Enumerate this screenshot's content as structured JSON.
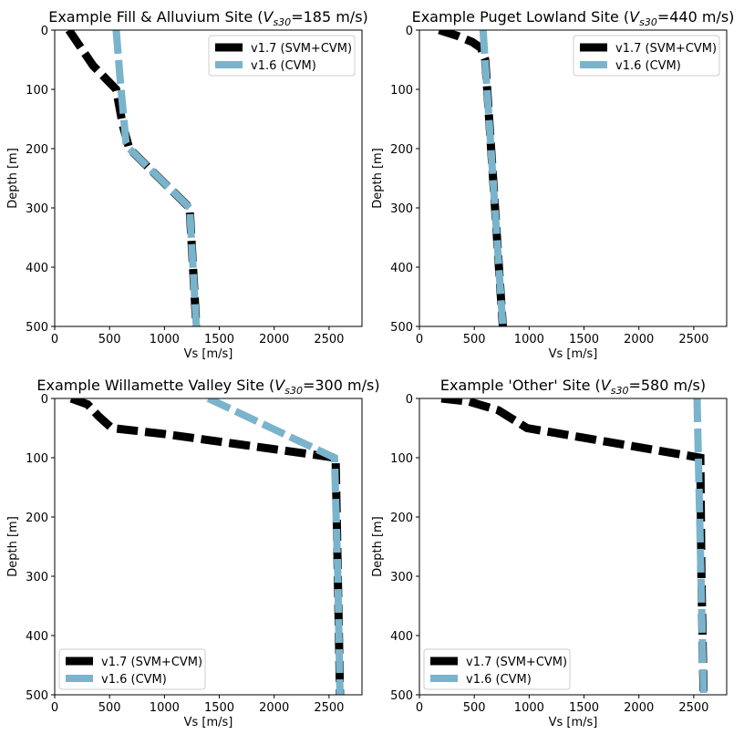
{
  "colors": {
    "v17": "#000000",
    "v16": "#7ab3cc",
    "axis": "#000000",
    "legend_border": "#cccccc",
    "background": "#ffffff"
  },
  "chart_data": [
    {
      "type": "line",
      "title_prefix": "Example Fill & Alluvium Site (",
      "title_var": "V",
      "title_sub": "s30",
      "title_suffix": "=185 m/s)",
      "xlabel": "Vs [m/s]",
      "ylabel": "Depth [m]",
      "xlim": [
        0,
        2800
      ],
      "ylim": [
        500,
        0
      ],
      "xticks": [
        0,
        500,
        1000,
        1500,
        2000,
        2500
      ],
      "yticks": [
        0,
        100,
        200,
        300,
        400,
        500
      ],
      "legend_loc": "upper-right",
      "series": [
        {
          "name": "v1.7 (SVM+CVM)",
          "x": [
            130,
            350,
            560,
            620,
            680,
            1230,
            1260,
            1290
          ],
          "y": [
            0,
            60,
            100,
            160,
            200,
            300,
            400,
            500
          ]
        },
        {
          "name": "v1.6 (CVM)",
          "x": [
            560,
            600,
            650,
            680,
            1230,
            1260,
            1290
          ],
          "y": [
            0,
            90,
            190,
            200,
            300,
            400,
            500
          ]
        }
      ]
    },
    {
      "type": "line",
      "title_prefix": "Example Puget Lowland Site (",
      "title_var": "V",
      "title_sub": "s30",
      "title_suffix": "=440 m/s)",
      "xlabel": "Vs [m/s]",
      "ylabel": "Depth [m]",
      "xlim": [
        0,
        2800
      ],
      "ylim": [
        500,
        0
      ],
      "xticks": [
        0,
        500,
        1000,
        1500,
        2000,
        2500
      ],
      "yticks": [
        0,
        100,
        200,
        300,
        400,
        500
      ],
      "legend_loc": "upper-right",
      "series": [
        {
          "name": "v1.7 (SVM+CVM)",
          "x": [
            180,
            350,
            480,
            560,
            600,
            760
          ],
          "y": [
            0,
            10,
            20,
            30,
            50,
            500
          ]
        },
        {
          "name": "v1.6 (CVM)",
          "x": [
            580,
            760
          ],
          "y": [
            0,
            500
          ]
        }
      ]
    },
    {
      "type": "line",
      "title_prefix": "Example Willamette Valley Site (",
      "title_var": "V",
      "title_sub": "s30",
      "title_suffix": "=300 m/s)",
      "xlabel": "Vs [m/s]",
      "ylabel": "Depth [m]",
      "xlim": [
        0,
        2800
      ],
      "ylim": [
        500,
        0
      ],
      "xticks": [
        0,
        500,
        1000,
        1500,
        2000,
        2500
      ],
      "yticks": [
        0,
        100,
        200,
        300,
        400,
        500
      ],
      "legend_loc": "lower-left",
      "series": [
        {
          "name": "v1.7 (SVM+CVM)",
          "x": [
            150,
            300,
            400,
            520,
            1000,
            2560,
            2580,
            2600
          ],
          "y": [
            0,
            10,
            30,
            50,
            60,
            100,
            300,
            500
          ]
        },
        {
          "name": "v1.6 (CVM)",
          "x": [
            1400,
            2550,
            2580,
            2600
          ],
          "y": [
            0,
            100,
            300,
            500
          ]
        }
      ]
    },
    {
      "type": "line",
      "title_prefix": "Example 'Other' Site (",
      "title_var": "V",
      "title_sub": "s30",
      "title_suffix": "=580 m/s)",
      "xlabel": "Vs [m/s]",
      "ylabel": "Depth [m]",
      "xlim": [
        0,
        2800
      ],
      "ylim": [
        500,
        0
      ],
      "xticks": [
        0,
        500,
        1000,
        1500,
        2000,
        2500
      ],
      "yticks": [
        0,
        100,
        200,
        300,
        400,
        500
      ],
      "legend_loc": "lower-left",
      "series": [
        {
          "name": "v1.7 (SVM+CVM)",
          "x": [
            200,
            450,
            720,
            980,
            2560,
            2570,
            2590
          ],
          "y": [
            0,
            5,
            20,
            50,
            100,
            300,
            500
          ]
        },
        {
          "name": "v1.6 (CVM)",
          "x": [
            2530,
            2590
          ],
          "y": [
            0,
            500
          ]
        }
      ]
    }
  ]
}
